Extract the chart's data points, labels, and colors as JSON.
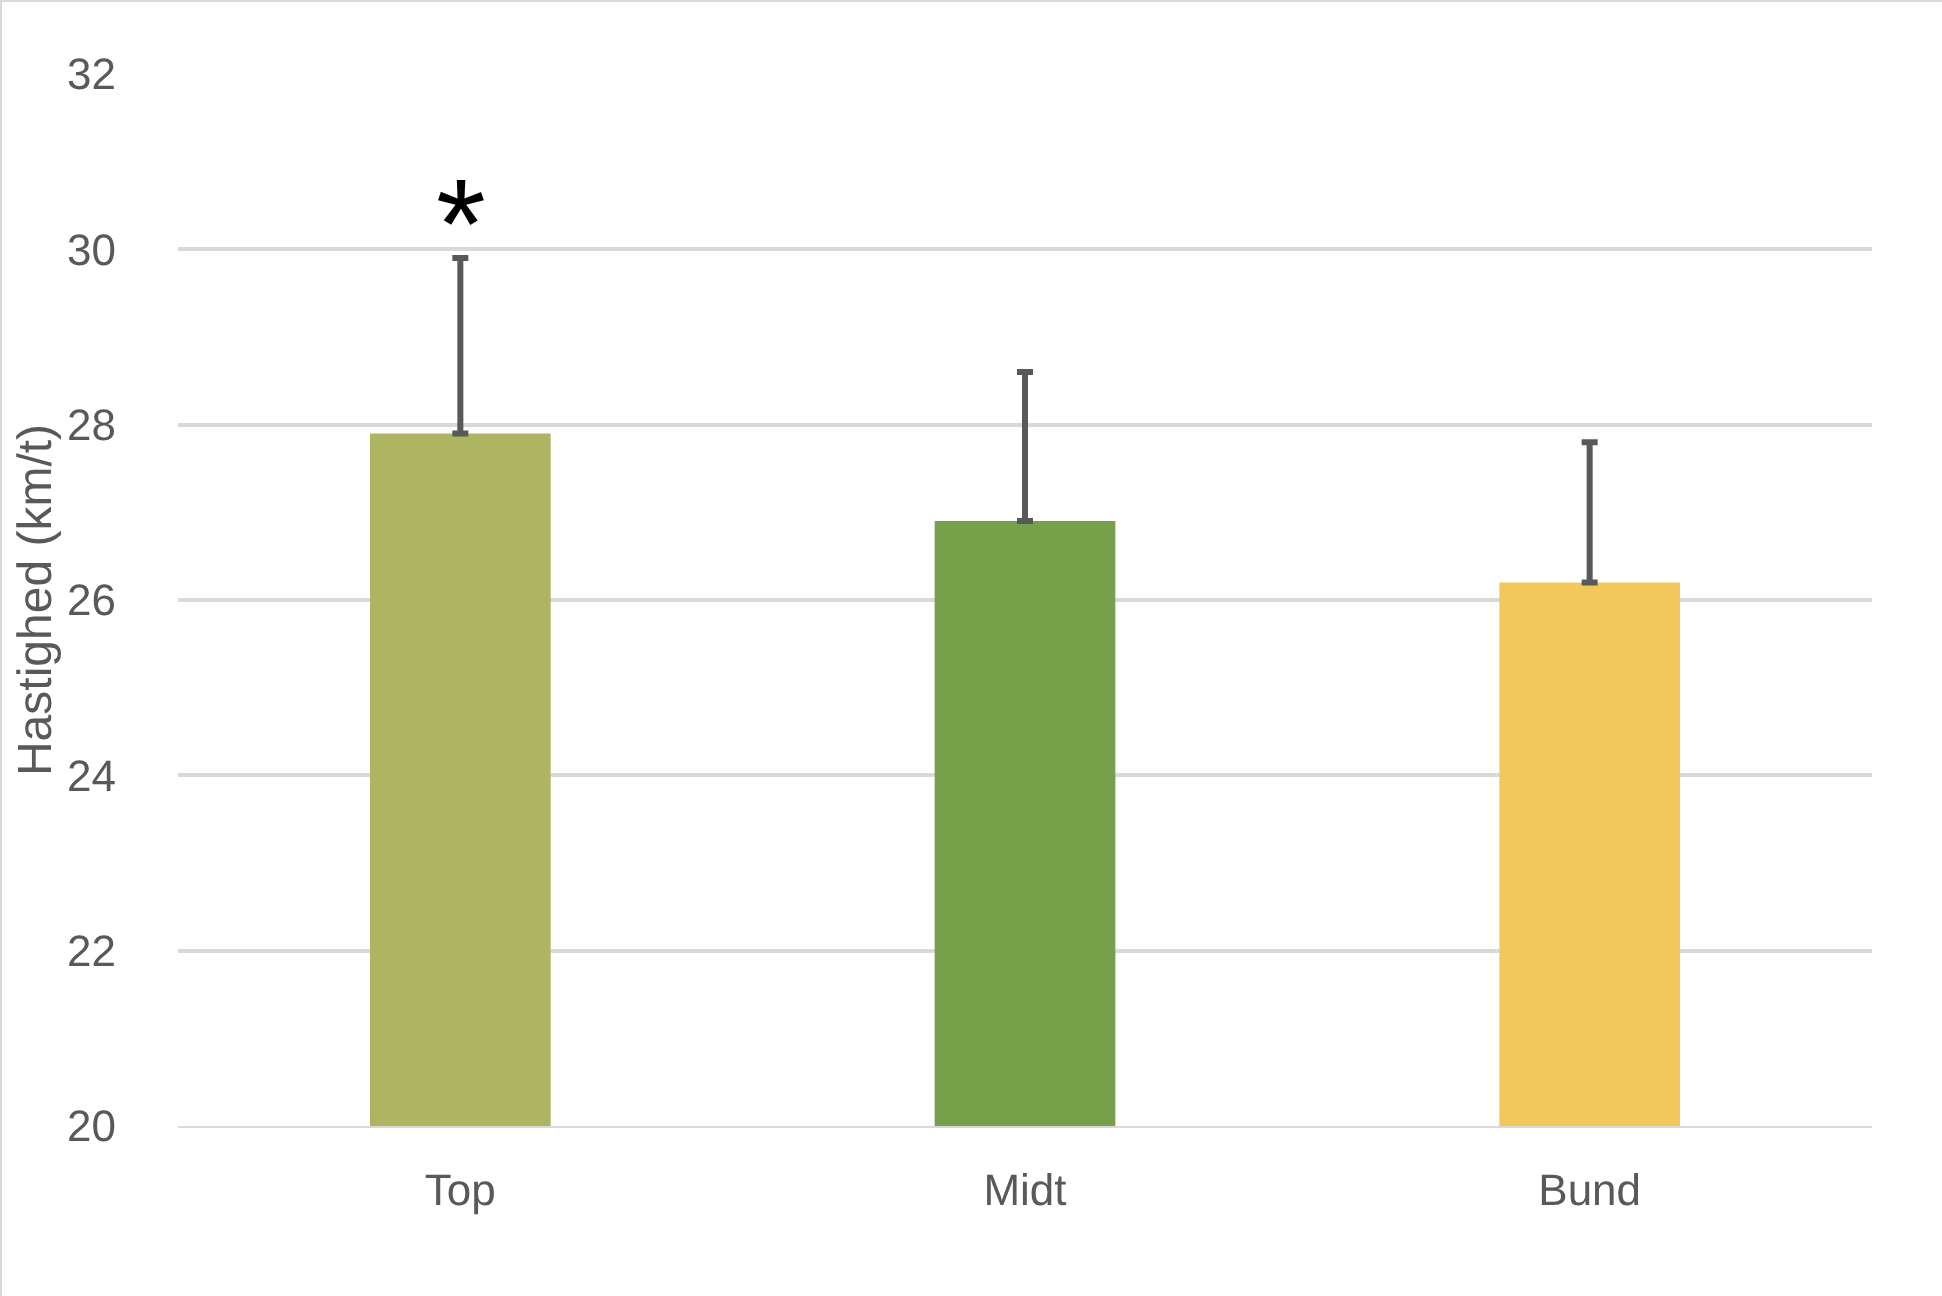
{
  "chart_data": {
    "type": "bar",
    "ylabel": "Hastighed (km/t)",
    "categories": [
      "Top",
      "Midt",
      "Bund"
    ],
    "values": [
      27.9,
      26.9,
      26.2
    ],
    "colors": [
      "#adb562",
      "#77a04a",
      "#f2c75c"
    ],
    "errors": [
      [
        27.9,
        29.9
      ],
      [
        26.9,
        28.6
      ],
      [
        26.2,
        27.8
      ]
    ],
    "ylim": [
      20,
      32
    ],
    "yticks": [
      20,
      22,
      24,
      26,
      28,
      30,
      32
    ],
    "grid": "y",
    "legend": false,
    "annotations": [
      "*"
    ]
  }
}
